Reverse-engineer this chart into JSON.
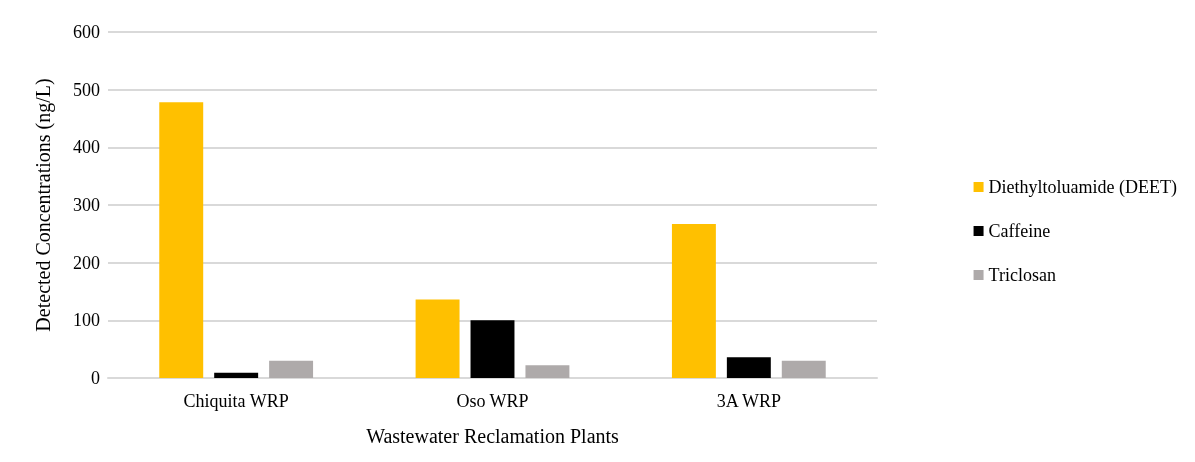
{
  "chart_data": {
    "type": "bar",
    "xlabel": "Wastewater Reclamation Plants",
    "ylabel": "Detected Concentrations (ng/L)",
    "categories": [
      "Chiquita WRP",
      "Oso WRP",
      "3A WRP"
    ],
    "series": [
      {
        "name": "Diethyltoluamide (DEET)",
        "color": "#ffc000",
        "values": [
          478,
          136,
          267
        ]
      },
      {
        "name": "Caffeine",
        "color": "#000000",
        "values": [
          9,
          100,
          36
        ]
      },
      {
        "name": "Triclosan",
        "color": "#aeaaaa",
        "values": [
          30,
          22,
          30
        ]
      }
    ],
    "ylim": [
      0,
      600
    ],
    "yticks": [
      0,
      100,
      200,
      300,
      400,
      500,
      600
    ],
    "grid": "y",
    "legend": "right"
  }
}
